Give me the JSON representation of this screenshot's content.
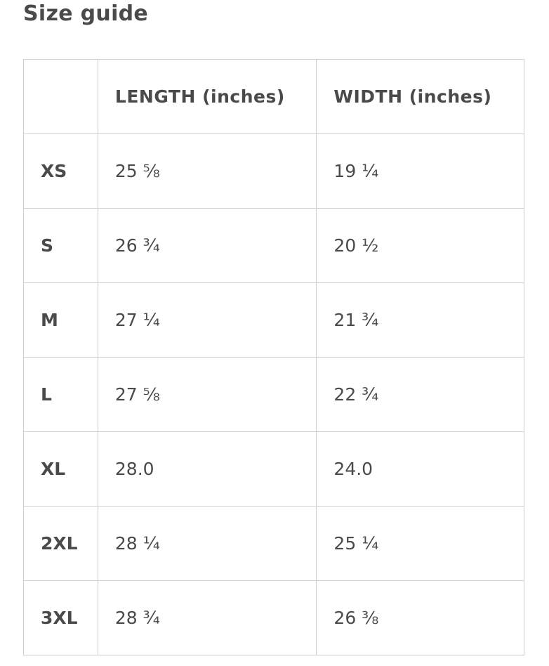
{
  "title": "Size guide",
  "table": {
    "headers": [
      "",
      "LENGTH (inches)",
      "WIDTH (inches)"
    ],
    "rows": [
      {
        "size": "XS",
        "length": "25 ⅝",
        "width": "19 ¼"
      },
      {
        "size": "S",
        "length": "26 ¾",
        "width": "20 ½"
      },
      {
        "size": "M",
        "length": "27 ¼",
        "width": "21 ¾"
      },
      {
        "size": "L",
        "length": "27 ⅝",
        "width": "22 ¾"
      },
      {
        "size": "XL",
        "length": "28.0",
        "width": "24.0"
      },
      {
        "size": "2XL",
        "length": "28 ¼",
        "width": "25 ¼"
      },
      {
        "size": "3XL",
        "length": "28 ¾",
        "width": "26 ⅜"
      }
    ]
  },
  "colors": {
    "text": "#4a4a4a",
    "border": "#cfcfcf"
  }
}
